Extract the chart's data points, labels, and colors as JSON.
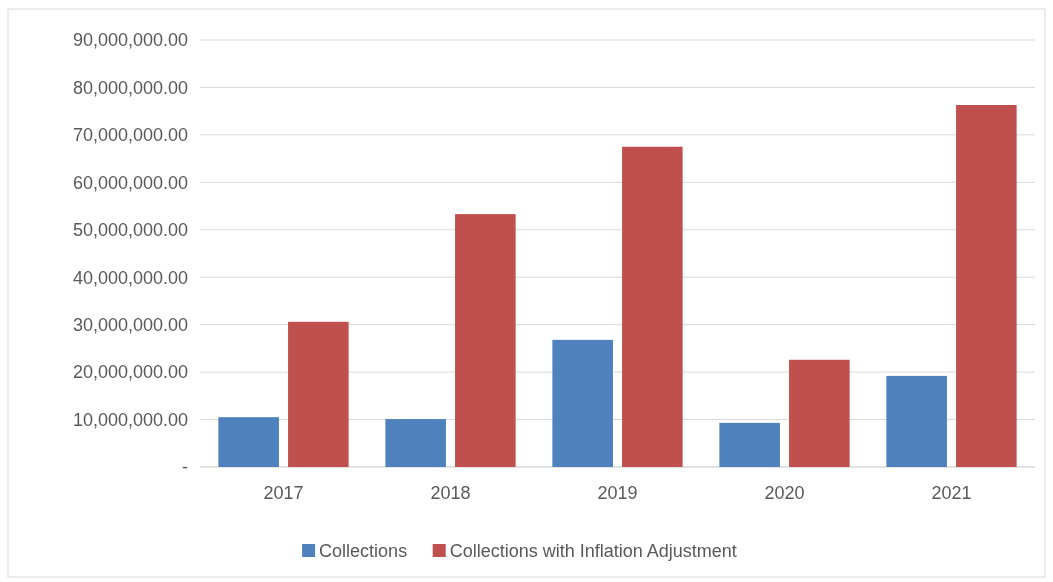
{
  "chart_data": {
    "type": "bar",
    "categories": [
      "2017",
      "2018",
      "2019",
      "2020",
      "2021"
    ],
    "series": [
      {
        "name": "Collections",
        "color": "#4f81bd",
        "values": [
          10500000,
          10100000,
          26800000,
          9300000,
          19200000
        ]
      },
      {
        "name": "Collections with Inflation Adjustment",
        "color": "#c0504d",
        "values": [
          30600000,
          53300000,
          67500000,
          22600000,
          76300000
        ]
      }
    ],
    "ylim": [
      0,
      90000000
    ],
    "yticks": [
      {
        "value": 0,
        "label": "-"
      },
      {
        "value": 10000000,
        "label": "10,000,000.00"
      },
      {
        "value": 20000000,
        "label": "20,000,000.00"
      },
      {
        "value": 30000000,
        "label": "30,000,000.00"
      },
      {
        "value": 40000000,
        "label": "40,000,000.00"
      },
      {
        "value": 50000000,
        "label": "50,000,000.00"
      },
      {
        "value": 60000000,
        "label": "60,000,000.00"
      },
      {
        "value": 70000000,
        "label": "70,000,000.00"
      },
      {
        "value": 80000000,
        "label": "80,000,000.00"
      },
      {
        "value": 90000000,
        "label": "90,000,000.00"
      }
    ],
    "grid": "y",
    "legend": "bottom"
  }
}
